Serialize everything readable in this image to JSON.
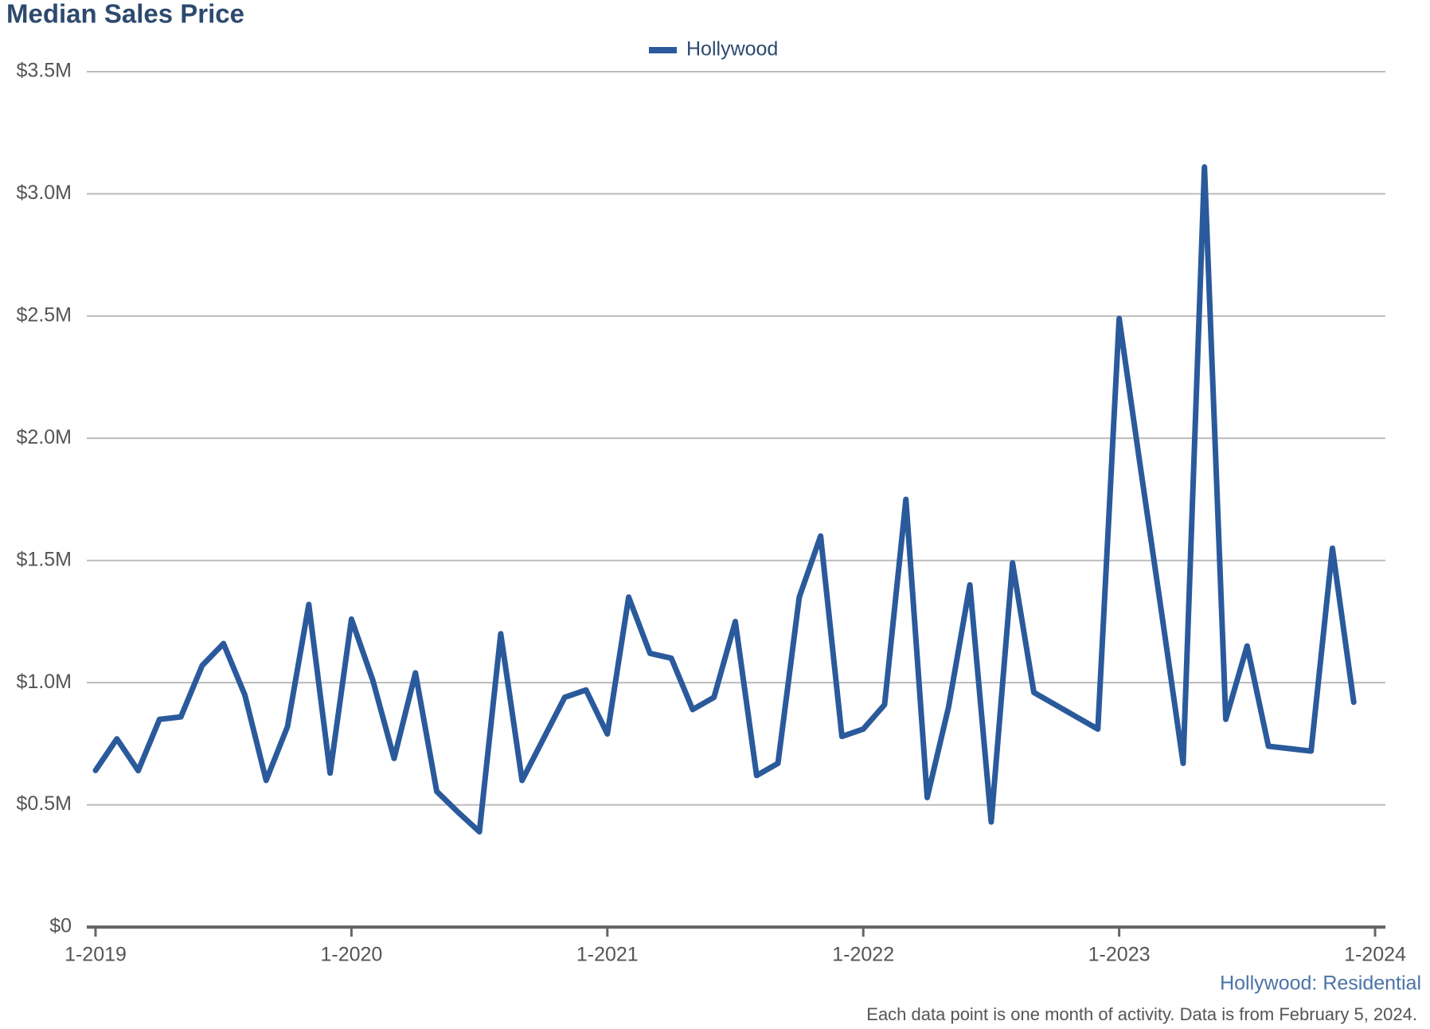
{
  "chart_data": {
    "type": "line",
    "title": "Median Sales Price",
    "subtitle": "Hollywood: Residential",
    "note": "Each data point is one month of activity. Data is from February 5, 2024.",
    "x": [
      "1-2019",
      "2-2019",
      "3-2019",
      "4-2019",
      "5-2019",
      "6-2019",
      "7-2019",
      "8-2019",
      "9-2019",
      "10-2019",
      "11-2019",
      "12-2019",
      "1-2020",
      "2-2020",
      "3-2020",
      "4-2020",
      "5-2020",
      "6-2020",
      "7-2020",
      "8-2020",
      "9-2020",
      "10-2020",
      "11-2020",
      "12-2020",
      "1-2021",
      "2-2021",
      "3-2021",
      "4-2021",
      "5-2021",
      "6-2021",
      "7-2021",
      "8-2021",
      "9-2021",
      "10-2021",
      "11-2021",
      "12-2021",
      "1-2022",
      "2-2022",
      "3-2022",
      "4-2022",
      "5-2022",
      "6-2022",
      "7-2022",
      "8-2022",
      "9-2022",
      "10-2022",
      "11-2022",
      "12-2022",
      "1-2023",
      "2-2023",
      "3-2023",
      "4-2023",
      "5-2023",
      "6-2023",
      "7-2023",
      "8-2023",
      "9-2023",
      "10-2023",
      "11-2023",
      "12-2023"
    ],
    "series": [
      {
        "name": "Hollywood",
        "color": "#2a5a9b",
        "values": [
          641000,
          770000,
          640000,
          850000,
          860000,
          1070000,
          1160000,
          950000,
          600000,
          820000,
          1320000,
          630000,
          1260000,
          1010000,
          690000,
          1040000,
          555000,
          470000,
          390000,
          1200000,
          600000,
          770000,
          940000,
          970000,
          790000,
          1350000,
          1120000,
          1100000,
          890000,
          940000,
          1250000,
          620000,
          670000,
          1350000,
          1600000,
          780000,
          810000,
          910000,
          1750000,
          530000,
          900000,
          1400000,
          430000,
          1490000,
          960000,
          910000,
          860000,
          810000,
          2490000,
          1880000,
          1280000,
          670000,
          3110000,
          850000,
          1150000,
          740000,
          730000,
          720000,
          1550000,
          920000
        ]
      }
    ],
    "xticks": [
      "1-2019",
      "1-2020",
      "1-2021",
      "1-2022",
      "1-2023",
      "1-2024"
    ],
    "xlim": [
      "1-2019",
      "1-2024"
    ],
    "ylim": [
      0,
      3500000
    ],
    "yticks": [
      {
        "value": 0,
        "label": "$0"
      },
      {
        "value": 500000,
        "label": "$0.5M"
      },
      {
        "value": 1000000,
        "label": "$1.0M"
      },
      {
        "value": 1500000,
        "label": "$1.5M"
      },
      {
        "value": 2000000,
        "label": "$2.0M"
      },
      {
        "value": 2500000,
        "label": "$2.5M"
      },
      {
        "value": 3000000,
        "label": "$3.0M"
      },
      {
        "value": 3500000,
        "label": "$3.5M"
      }
    ],
    "grid": true,
    "legend": "top"
  }
}
